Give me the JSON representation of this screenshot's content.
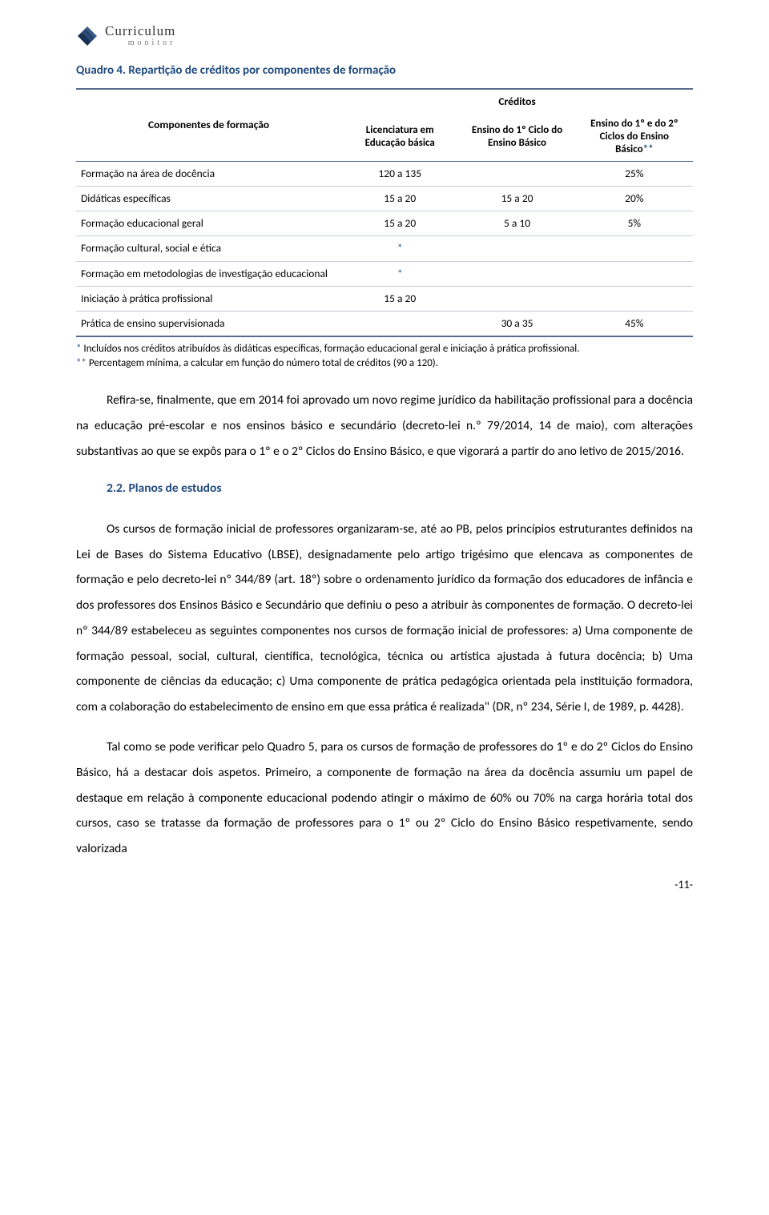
{
  "logo": {
    "main": "Curriculum",
    "sub": "monitor"
  },
  "quadro": {
    "label": "Quadro 4.",
    "title": "Repartição de créditos por componentes de formação"
  },
  "table": {
    "col_rowlabel": "Componentes de formação",
    "col_group": "Créditos",
    "col1": "Licenciatura em Educação básica",
    "col2": "Ensino do 1º Ciclo do Ensino Básico",
    "col3_a": "Ensino do 1º e do 2º Ciclos do Ensino Básico",
    "col3_b": "**",
    "rows": [
      {
        "label": "Formação na área de docência",
        "c1": "120 a 135",
        "c2": "",
        "c3": "25%"
      },
      {
        "label": "Didáticas específicas",
        "c1": "15 a 20",
        "c2": "15 a 20",
        "c3": "20%"
      },
      {
        "label": "Formação educacional geral",
        "c1": "15 a 20",
        "c2": "5 a 10",
        "c3": "5%"
      },
      {
        "label": "Formação cultural, social e ética",
        "c1": "*",
        "c2": "",
        "c3": ""
      },
      {
        "label": "Formação em metodologias de investigação educacional",
        "c1": "*",
        "c2": "",
        "c3": ""
      },
      {
        "label": "Iniciação à prática profissional",
        "c1": "15 a 20",
        "c2": "",
        "c3": ""
      },
      {
        "label": "Prática de ensino supervisionada",
        "c1": "",
        "c2": "30 a 35",
        "c3": "45%"
      }
    ],
    "colors": {
      "border_heavy": "#5b6b8c",
      "border_light": "#c8cfdd",
      "star": "#1f497d"
    }
  },
  "footnotes": {
    "star": "*",
    "f1": " Incluídos nos créditos atribuídos às didáticas específicas, formação educacional geral e iniciação à prática profissional.",
    "dstar": "**",
    "f2": " Percentagem mínima, a calcular em função do número total de créditos (90 a 120)."
  },
  "para1": "Refira-se, finalmente, que em 2014 foi aprovado um novo regime jurídico da habilitação profissional para a docência na educação pré-escolar e nos ensinos básico e secundário (decreto-lei n.º 79/2014, 14 de maio), com alterações substantivas ao que se expôs para o 1º e o 2º Ciclos do Ensino Básico, e que vigorará a partir do ano letivo de 2015/2016.",
  "section": "2.2. Planos de estudos",
  "para2": "Os cursos de formação inicial de professores organizaram-se, até ao PB, pelos princípios estruturantes definidos na Lei de Bases do Sistema Educativo (LBSE), designadamente pelo artigo trigésimo que elencava as componentes de formação e pelo decreto-lei nº 344/89 (art. 18º) sobre o ordenamento jurídico da formação dos educadores de infância e dos professores dos Ensinos Básico e Secundário que definiu o peso a atribuir às componentes de formação. O decreto-lei nº 344/89 estabeleceu as seguintes componentes nos cursos de formação inicial de professores: a) Uma componente de formação pessoal, social, cultural, científica, tecnológica, técnica ou artística ajustada à futura docência; b) Uma componente de ciências da educação; c) Uma componente de prática pedagógica orientada pela instituição formadora, com a colaboração do estabelecimento de ensino em que essa prática é realizada\" (DR, nº 234, Série I, de 1989, p. 4428).",
  "para3": "Tal como se pode verificar pelo Quadro 5, para os cursos de formação de professores do 1º e do 2º Ciclos do Ensino Básico, há a destacar dois aspetos. Primeiro, a componente de formação na área da docência assumiu um papel de destaque em relação à componente educacional podendo atingir o máximo de 60% ou 70% na carga horária total dos cursos, caso se tratasse da formação de professores para o 1º ou 2º Ciclo do Ensino Básico respetivamente, sendo valorizada",
  "pagenum": "-11-"
}
